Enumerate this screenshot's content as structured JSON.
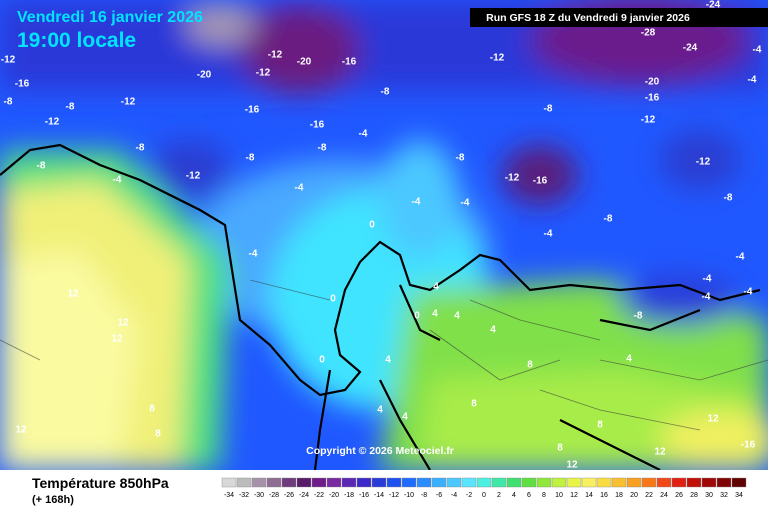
{
  "header": {
    "date": "Vendredi 16 janvier 2026",
    "time": "19:00 locale",
    "run": "Run GFS 18 Z du Vendredi 9 janvier 2026"
  },
  "copyright": "Copyright © 2026 Meteociel.fr",
  "legend": {
    "title": "Température 850hPa",
    "lead": "(+ 168h)",
    "values": [
      -34,
      -32,
      -30,
      -28,
      -26,
      -24,
      -22,
      -20,
      -18,
      -16,
      -14,
      -12,
      -10,
      -8,
      -6,
      -4,
      -2,
      0,
      2,
      4,
      6,
      8,
      10,
      12,
      14,
      16,
      18,
      20,
      22,
      24,
      26,
      28,
      30,
      32,
      34
    ],
    "colors": [
      "#d8d8d8",
      "#bcbcbc",
      "#a592a8",
      "#8e6c94",
      "#6e3c7c",
      "#5a1a6a",
      "#6e1c8a",
      "#7a2aa0",
      "#5a28b4",
      "#3a28c8",
      "#2a3cd8",
      "#1e50f0",
      "#1e6cff",
      "#2a8cff",
      "#3aaeff",
      "#4cc8ff",
      "#5ae4ff",
      "#4cf0e0",
      "#40e8a8",
      "#40e070",
      "#60e040",
      "#90e83c",
      "#c0f040",
      "#e8f448",
      "#f8f060",
      "#f8dc40",
      "#f8c030",
      "#f8a020",
      "#f87818",
      "#f04818",
      "#e02010",
      "#c01008",
      "#a00808",
      "#800404",
      "#600000"
    ]
  },
  "map_labels": [
    -12,
    -16,
    -20,
    -12,
    -20,
    -12,
    -8,
    -12,
    -16,
    -12,
    -8,
    -8,
    -12,
    -8,
    -4,
    -16,
    -16,
    -8,
    -8,
    -4,
    -4,
    -8,
    -12,
    -8,
    -12,
    -16,
    -8,
    -12,
    -16,
    -20,
    -24,
    -28,
    -12,
    -8,
    -8,
    -4,
    -4,
    -4,
    -4,
    0,
    0,
    0,
    0,
    4,
    4,
    4,
    4,
    4,
    4,
    4,
    8,
    8,
    8,
    8,
    8,
    12,
    12,
    12,
    12,
    12,
    12,
    -16,
    -4,
    -4,
    -8,
    4,
    8,
    12,
    -4,
    -4,
    -4,
    -4,
    -24
  ]
}
